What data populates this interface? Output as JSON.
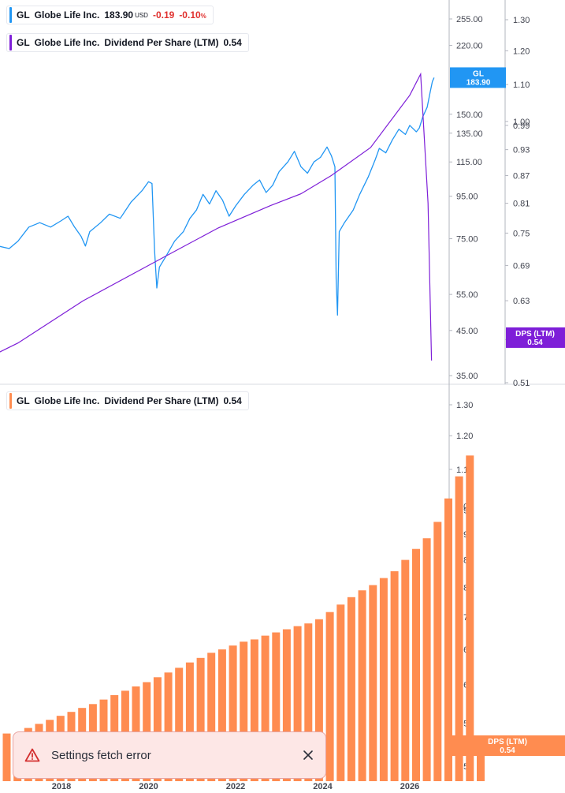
{
  "legend_price": {
    "symbol": "GL",
    "name": "Globe Life Inc.",
    "value": "183.90",
    "currency": "USD",
    "change": "-0.19",
    "change_pct": "-0.10",
    "pct_unit": "%",
    "color": "#2196f3"
  },
  "legend_dps": {
    "symbol": "GL",
    "name": "Globe Life Inc.",
    "metric": "Dividend Per Share (LTM)",
    "value": "0.54",
    "color": "#7e1fd8"
  },
  "legend_bars": {
    "symbol": "GL",
    "name": "Globe Life Inc.",
    "metric": "Dividend Per Share (LTM)",
    "value": "0.54",
    "color": "#ff8c50"
  },
  "toast": {
    "message": "Settings fetch error"
  },
  "chart_data": [
    {
      "type": "line",
      "series": [
        {
          "name": "GL",
          "color": "#2196f3",
          "points": [
            [
              2016.0,
              63
            ],
            [
              2016.25,
              68
            ],
            [
              2016.55,
              72
            ],
            [
              2016.8,
              71
            ],
            [
              2017.0,
              74
            ],
            [
              2017.25,
              80
            ],
            [
              2017.5,
              82
            ],
            [
              2017.75,
              80
            ],
            [
              2018.0,
              83
            ],
            [
              2018.15,
              85
            ],
            [
              2018.3,
              80
            ],
            [
              2018.45,
              76
            ],
            [
              2018.55,
              72
            ],
            [
              2018.65,
              78
            ],
            [
              2018.9,
              82
            ],
            [
              2019.1,
              86
            ],
            [
              2019.35,
              84
            ],
            [
              2019.6,
              92
            ],
            [
              2019.85,
              98
            ],
            [
              2020.0,
              103
            ],
            [
              2020.08,
              102
            ],
            [
              2020.14,
              70
            ],
            [
              2020.19,
              57
            ],
            [
              2020.25,
              64
            ],
            [
              2020.4,
              68
            ],
            [
              2020.6,
              74
            ],
            [
              2020.8,
              78
            ],
            [
              2020.95,
              84
            ],
            [
              2021.1,
              88
            ],
            [
              2021.25,
              96
            ],
            [
              2021.4,
              91
            ],
            [
              2021.55,
              98
            ],
            [
              2021.7,
              93
            ],
            [
              2021.85,
              85
            ],
            [
              2022.0,
              90
            ],
            [
              2022.2,
              96
            ],
            [
              2022.4,
              101
            ],
            [
              2022.55,
              104
            ],
            [
              2022.7,
              97
            ],
            [
              2022.85,
              101
            ],
            [
              2023.0,
              109
            ],
            [
              2023.2,
              115
            ],
            [
              2023.35,
              122
            ],
            [
              2023.5,
              112
            ],
            [
              2023.65,
              108
            ],
            [
              2023.8,
              115
            ],
            [
              2023.95,
              118
            ],
            [
              2024.1,
              125
            ],
            [
              2024.2,
              119
            ],
            [
              2024.28,
              112
            ],
            [
              2024.31,
              60
            ],
            [
              2024.34,
              49
            ],
            [
              2024.38,
              78
            ],
            [
              2024.5,
              82
            ],
            [
              2024.7,
              88
            ],
            [
              2024.85,
              96
            ],
            [
              2025.05,
              106
            ],
            [
              2025.2,
              116
            ],
            [
              2025.3,
              124
            ],
            [
              2025.45,
              121
            ],
            [
              2025.6,
              130
            ],
            [
              2025.75,
              138
            ],
            [
              2025.9,
              134
            ],
            [
              2026.0,
              141
            ],
            [
              2026.15,
              136
            ],
            [
              2026.22,
              139
            ],
            [
              2026.3,
              148
            ],
            [
              2026.4,
              156
            ],
            [
              2026.47,
              170
            ],
            [
              2026.52,
              180
            ],
            [
              2026.56,
              183.9
            ]
          ]
        },
        {
          "name": "DPS (LTM)",
          "color": "#7e1fd8",
          "points": [
            [
              2015.85,
              0.53
            ],
            [
              2017.0,
              0.565
            ],
            [
              2018.5,
              0.63
            ],
            [
              2020.0,
              0.69
            ],
            [
              2020.7,
              0.72
            ],
            [
              2021.6,
              0.76
            ],
            [
              2022.8,
              0.805
            ],
            [
              2023.5,
              0.83
            ],
            [
              2024.2,
              0.87
            ],
            [
              2025.1,
              0.935
            ],
            [
              2026.0,
              1.07
            ],
            [
              2026.25,
              1.13
            ],
            [
              2026.42,
              0.81
            ],
            [
              2026.5,
              0.54
            ]
          ]
        }
      ],
      "y_axis_price": [
        255.0,
        220.0,
        150.0,
        135.0,
        115.0,
        95.0,
        75.0,
        55.0,
        45.0,
        35.0
      ],
      "y_axis_dps": [
        1.3,
        1.2,
        1.1,
        1.0,
        0.99,
        0.93,
        0.87,
        0.81,
        0.75,
        0.69,
        0.63,
        0.57,
        0.51
      ],
      "price_label": {
        "symbol": "GL",
        "value": "183.90",
        "color": "#2196f3"
      },
      "dps_label": {
        "name": "DPS (LTM)",
        "value": "0.54",
        "color": "#7e1fd8"
      },
      "log_scale": true
    },
    {
      "type": "bar",
      "name": "Dividend Per Share (LTM)",
      "color": "#ff8c50",
      "y_axis": [
        1.3,
        1.2,
        1.1,
        1.0,
        0.99,
        0.93,
        0.87,
        0.81,
        0.75,
        0.69,
        0.63,
        0.57,
        0.51
      ],
      "x_ticks": [
        "2018",
        "2020",
        "2022",
        "2024",
        "2026"
      ],
      "values": [
        0.555,
        0.548,
        0.563,
        0.569,
        0.575,
        0.581,
        0.587,
        0.593,
        0.599,
        0.606,
        0.613,
        0.62,
        0.627,
        0.634,
        0.642,
        0.65,
        0.658,
        0.667,
        0.675,
        0.684,
        0.69,
        0.697,
        0.704,
        0.708,
        0.715,
        0.721,
        0.727,
        0.733,
        0.738,
        0.746,
        0.76,
        0.775,
        0.79,
        0.804,
        0.815,
        0.83,
        0.845,
        0.87,
        0.895,
        0.92,
        0.96,
        1.02,
        1.08,
        1.14,
        0.54
      ],
      "current_label": {
        "name": "DPS (LTM)",
        "value": "0.54",
        "color": "#ff8c50"
      },
      "log_scale": true
    }
  ]
}
